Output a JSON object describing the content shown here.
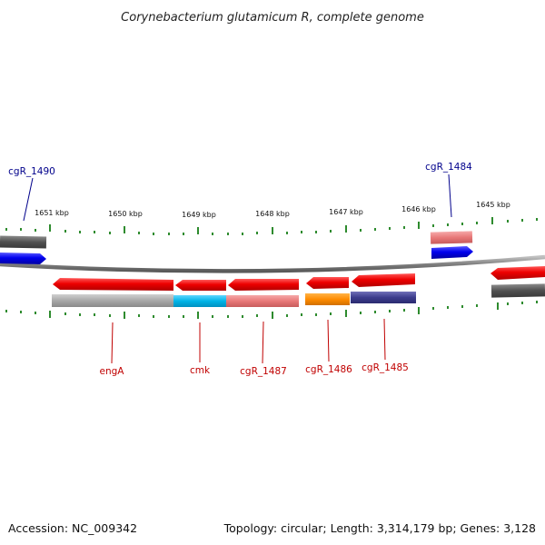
{
  "title": "Corynebacterium glutamicum R, complete genome",
  "footer": {
    "accession": "Accession: NC_009342",
    "topology": "Topology: circular; Length: 3,314,179 bp; Genes: 3,128"
  },
  "scale_labels": [
    "1651 kbp",
    "1650 kbp",
    "1649 kbp",
    "1648 kbp",
    "1647 kbp",
    "1646 kbp",
    "1645 kbp"
  ],
  "genes": {
    "cgR_1490": "cgR_1490",
    "cgR_1484": "cgR_1484",
    "engA": "engA",
    "cmk": "cmk",
    "cgR_1487": "cgR_1487",
    "cgR_1486": "cgR_1486",
    "cgR_1485": "cgR_1485"
  },
  "colors": {
    "forward_strand": "#0000ee",
    "reverse_strand": "#ee0000",
    "backbone": "#808080",
    "tick": "#2e8b2e",
    "cog_grey": "#a8a8a8",
    "cog_cyan": "#00b4e6",
    "cog_pink": "#e87878",
    "cog_orange": "#ff8c00",
    "cog_navy": "#3c3c8c",
    "cog_darkgrey": "#505050"
  }
}
